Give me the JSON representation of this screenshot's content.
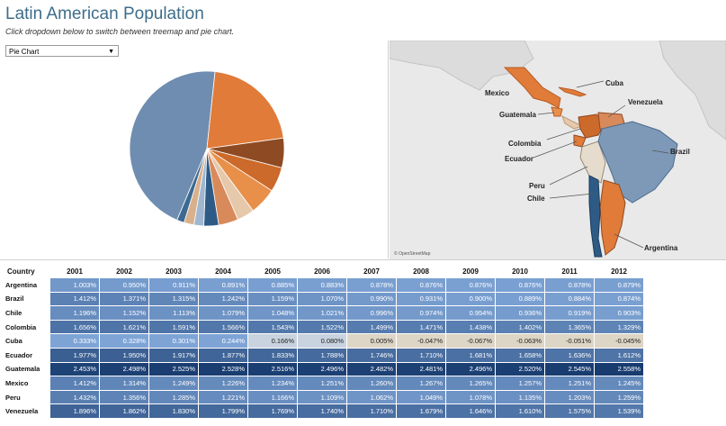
{
  "header": {
    "title": "Latin American Population",
    "subtitle": "Click dropdown below to switch between treemap and pie chart."
  },
  "dropdown": {
    "value": "Pie Chart"
  },
  "pie": {
    "slices": [
      {
        "value": 0.44,
        "color": "#6f8db0"
      },
      {
        "value": 0.205,
        "color": "#e07b39"
      },
      {
        "value": 0.06,
        "color": "#8e4a22"
      },
      {
        "value": 0.05,
        "color": "#cb6a2a"
      },
      {
        "value": 0.055,
        "color": "#e8904a"
      },
      {
        "value": 0.035,
        "color": "#e6c8aa"
      },
      {
        "value": 0.04,
        "color": "#d98a5a"
      },
      {
        "value": 0.03,
        "color": "#2e5b86"
      },
      {
        "value": 0.02,
        "color": "#9fb7cf"
      },
      {
        "value": 0.02,
        "color": "#d9b08c"
      },
      {
        "value": 0.015,
        "color": "#3d6a93"
      }
    ]
  },
  "map": {
    "labels": [
      "Mexico",
      "Cuba",
      "Guatemala",
      "Venezuela",
      "Colombia",
      "Ecuador",
      "Brazil",
      "Peru",
      "Chile",
      "Argentina"
    ],
    "attribution": "© OpenStreetMap"
  },
  "table": {
    "country_header": "Country",
    "years": [
      "2001",
      "2002",
      "2003",
      "2004",
      "2005",
      "2006",
      "2007",
      "2008",
      "2009",
      "2010",
      "2011",
      "2012"
    ],
    "rows": [
      {
        "country": "Argentina",
        "values": [
          "1.003%",
          "0.950%",
          "0.911%",
          "0.891%",
          "0.885%",
          "0.883%",
          "0.878%",
          "0.876%",
          "0.876%",
          "0.876%",
          "0.878%",
          "0.879%"
        ]
      },
      {
        "country": "Brazil",
        "values": [
          "1.412%",
          "1.371%",
          "1.315%",
          "1.242%",
          "1.159%",
          "1.070%",
          "0.990%",
          "0.931%",
          "0.900%",
          "0.889%",
          "0.884%",
          "0.874%"
        ]
      },
      {
        "country": "Chile",
        "values": [
          "1.196%",
          "1.152%",
          "1.113%",
          "1.079%",
          "1.048%",
          "1.021%",
          "0.996%",
          "0.974%",
          "0.954%",
          "0.936%",
          "0.919%",
          "0.903%"
        ]
      },
      {
        "country": "Colombia",
        "values": [
          "1.656%",
          "1.621%",
          "1.591%",
          "1.566%",
          "1.543%",
          "1.522%",
          "1.499%",
          "1.471%",
          "1.438%",
          "1.402%",
          "1.365%",
          "1.329%"
        ]
      },
      {
        "country": "Cuba",
        "values": [
          "0.333%",
          "0.328%",
          "0.301%",
          "0.244%",
          "0.166%",
          "0.080%",
          "0.005%",
          "-0.047%",
          "-0.067%",
          "-0.063%",
          "-0.051%",
          "-0.045%"
        ]
      },
      {
        "country": "Ecuador",
        "values": [
          "1.977%",
          "1.950%",
          "1.917%",
          "1.877%",
          "1.833%",
          "1.788%",
          "1.746%",
          "1.710%",
          "1.681%",
          "1.658%",
          "1.636%",
          "1.612%"
        ]
      },
      {
        "country": "Guatemala",
        "values": [
          "2.453%",
          "2.498%",
          "2.525%",
          "2.528%",
          "2.516%",
          "2.496%",
          "2.482%",
          "2.481%",
          "2.496%",
          "2.520%",
          "2.545%",
          "2.558%"
        ]
      },
      {
        "country": "Mexico",
        "values": [
          "1.412%",
          "1.314%",
          "1.249%",
          "1.226%",
          "1.234%",
          "1.251%",
          "1.260%",
          "1.267%",
          "1.265%",
          "1.257%",
          "1.251%",
          "1.245%"
        ]
      },
      {
        "country": "Peru",
        "values": [
          "1.432%",
          "1.356%",
          "1.285%",
          "1.221%",
          "1.166%",
          "1.109%",
          "1.062%",
          "1.049%",
          "1.078%",
          "1.135%",
          "1.203%",
          "1.259%"
        ]
      },
      {
        "country": "Venezuela",
        "values": [
          "1.896%",
          "1.862%",
          "1.830%",
          "1.799%",
          "1.769%",
          "1.740%",
          "1.710%",
          "1.679%",
          "1.646%",
          "1.610%",
          "1.575%",
          "1.539%"
        ]
      }
    ]
  }
}
